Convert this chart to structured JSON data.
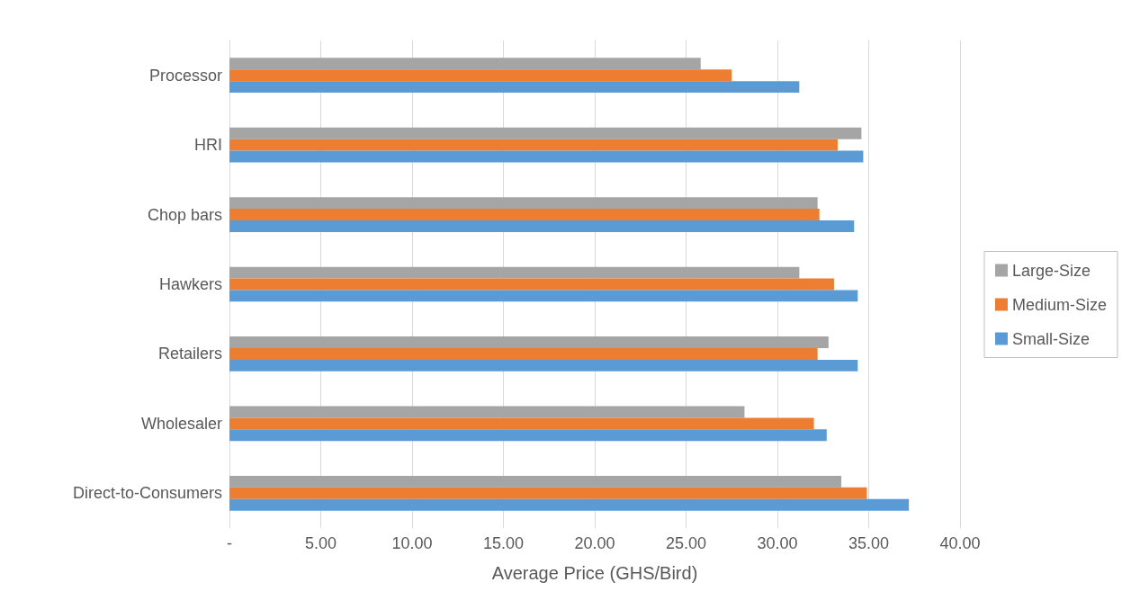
{
  "chart_data": {
    "type": "bar",
    "orientation": "horizontal",
    "xlabel": "Average Price (GHS/Bird)",
    "categories": [
      "Processor",
      "HRI",
      "Chop bars",
      "Hawkers",
      "Retailers",
      "Wholesaler",
      "Direct-to-Consumers"
    ],
    "series": [
      {
        "name": "Large-Size",
        "color": "#a5a5a5",
        "values": [
          25.8,
          34.6,
          32.2,
          31.2,
          32.8,
          28.2,
          33.5
        ]
      },
      {
        "name": "Medium-Size",
        "color": "#ed7d31",
        "values": [
          27.5,
          33.3,
          32.3,
          33.1,
          32.2,
          32.0,
          34.9
        ]
      },
      {
        "name": "Small-Size",
        "color": "#5b9bd5",
        "values": [
          31.2,
          34.7,
          34.2,
          34.4,
          34.4,
          32.7,
          37.2
        ]
      }
    ],
    "xlim": [
      0,
      40
    ],
    "xticks": [
      {
        "value": 0,
        "label": "-"
      },
      {
        "value": 5,
        "label": "5.00"
      },
      {
        "value": 10,
        "label": "10.00"
      },
      {
        "value": 15,
        "label": "15.00"
      },
      {
        "value": 20,
        "label": "20.00"
      },
      {
        "value": 25,
        "label": "25.00"
      },
      {
        "value": 30,
        "label": "30.00"
      },
      {
        "value": 35,
        "label": "35.00"
      },
      {
        "value": 40,
        "label": "40.00"
      }
    ],
    "grid": "x",
    "legend": "right"
  }
}
